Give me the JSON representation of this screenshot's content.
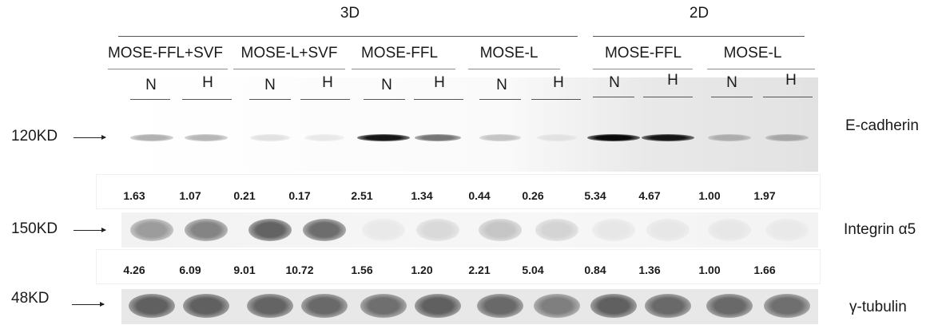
{
  "header": {
    "group_3d": "3D",
    "group_2d": "2D",
    "subgroups": [
      "MOSE-FFL+SVF",
      "MOSE-L+SVF",
      "MOSE-FFL",
      "MOSE-L",
      "MOSE-FFL",
      "MOSE-L"
    ],
    "lane_labels": [
      "N",
      "H",
      "N",
      "H",
      "N",
      "H",
      "N",
      "H",
      "N",
      "H",
      "N",
      "H"
    ]
  },
  "rows": [
    {
      "marker": "120KD",
      "protein": "E-cadherin",
      "values": [
        "1.63",
        "1.07",
        "0.21",
        "0.17",
        "2.51",
        "1.34",
        "0.44",
        "0.26",
        "5.34",
        "4.67",
        "1.00",
        "1.97"
      ],
      "relative_intensity": [
        0.3,
        0.28,
        0.1,
        0.07,
        0.95,
        0.55,
        0.22,
        0.1,
        1.0,
        0.95,
        0.32,
        0.35
      ]
    },
    {
      "marker": "150KD",
      "protein": "Integrin α5",
      "values": [
        "4.26",
        "6.09",
        "9.01",
        "10.72",
        "1.56",
        "1.20",
        "2.21",
        "5.04",
        "0.84",
        "1.36",
        "1.00",
        "1.66"
      ],
      "relative_intensity": [
        0.38,
        0.48,
        0.62,
        0.58,
        0.05,
        0.12,
        0.2,
        0.14,
        0.06,
        0.06,
        0.06,
        0.05
      ]
    },
    {
      "marker": "48KD",
      "protein": "γ-tubulin",
      "values": [],
      "relative_intensity": [
        0.62,
        0.62,
        0.6,
        0.58,
        0.55,
        0.62,
        0.58,
        0.48,
        0.62,
        0.58,
        0.58,
        0.55
      ]
    }
  ]
}
